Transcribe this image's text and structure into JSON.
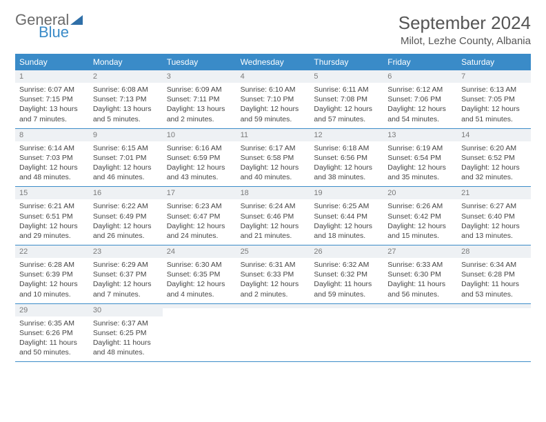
{
  "logo": {
    "word1": "General",
    "word2": "Blue"
  },
  "title": "September 2024",
  "location": "Milot, Lezhe County, Albania",
  "colors": {
    "header_bg": "#3a8bc8",
    "header_text": "#ffffff",
    "daynum_bg": "#eef1f4",
    "daynum_text": "#7a7a7a",
    "border": "#3a8bc8",
    "body_text": "#444444",
    "logo_gray": "#6a6a6a",
    "logo_blue": "#3a8bc8",
    "title_text": "#555555"
  },
  "dow": [
    "Sunday",
    "Monday",
    "Tuesday",
    "Wednesday",
    "Thursday",
    "Friday",
    "Saturday"
  ],
  "weeks": [
    [
      {
        "n": "1",
        "sr": "Sunrise: 6:07 AM",
        "ss": "Sunset: 7:15 PM",
        "d1": "Daylight: 13 hours",
        "d2": "and 7 minutes."
      },
      {
        "n": "2",
        "sr": "Sunrise: 6:08 AM",
        "ss": "Sunset: 7:13 PM",
        "d1": "Daylight: 13 hours",
        "d2": "and 5 minutes."
      },
      {
        "n": "3",
        "sr": "Sunrise: 6:09 AM",
        "ss": "Sunset: 7:11 PM",
        "d1": "Daylight: 13 hours",
        "d2": "and 2 minutes."
      },
      {
        "n": "4",
        "sr": "Sunrise: 6:10 AM",
        "ss": "Sunset: 7:10 PM",
        "d1": "Daylight: 12 hours",
        "d2": "and 59 minutes."
      },
      {
        "n": "5",
        "sr": "Sunrise: 6:11 AM",
        "ss": "Sunset: 7:08 PM",
        "d1": "Daylight: 12 hours",
        "d2": "and 57 minutes."
      },
      {
        "n": "6",
        "sr": "Sunrise: 6:12 AM",
        "ss": "Sunset: 7:06 PM",
        "d1": "Daylight: 12 hours",
        "d2": "and 54 minutes."
      },
      {
        "n": "7",
        "sr": "Sunrise: 6:13 AM",
        "ss": "Sunset: 7:05 PM",
        "d1": "Daylight: 12 hours",
        "d2": "and 51 minutes."
      }
    ],
    [
      {
        "n": "8",
        "sr": "Sunrise: 6:14 AM",
        "ss": "Sunset: 7:03 PM",
        "d1": "Daylight: 12 hours",
        "d2": "and 48 minutes."
      },
      {
        "n": "9",
        "sr": "Sunrise: 6:15 AM",
        "ss": "Sunset: 7:01 PM",
        "d1": "Daylight: 12 hours",
        "d2": "and 46 minutes."
      },
      {
        "n": "10",
        "sr": "Sunrise: 6:16 AM",
        "ss": "Sunset: 6:59 PM",
        "d1": "Daylight: 12 hours",
        "d2": "and 43 minutes."
      },
      {
        "n": "11",
        "sr": "Sunrise: 6:17 AM",
        "ss": "Sunset: 6:58 PM",
        "d1": "Daylight: 12 hours",
        "d2": "and 40 minutes."
      },
      {
        "n": "12",
        "sr": "Sunrise: 6:18 AM",
        "ss": "Sunset: 6:56 PM",
        "d1": "Daylight: 12 hours",
        "d2": "and 38 minutes."
      },
      {
        "n": "13",
        "sr": "Sunrise: 6:19 AM",
        "ss": "Sunset: 6:54 PM",
        "d1": "Daylight: 12 hours",
        "d2": "and 35 minutes."
      },
      {
        "n": "14",
        "sr": "Sunrise: 6:20 AM",
        "ss": "Sunset: 6:52 PM",
        "d1": "Daylight: 12 hours",
        "d2": "and 32 minutes."
      }
    ],
    [
      {
        "n": "15",
        "sr": "Sunrise: 6:21 AM",
        "ss": "Sunset: 6:51 PM",
        "d1": "Daylight: 12 hours",
        "d2": "and 29 minutes."
      },
      {
        "n": "16",
        "sr": "Sunrise: 6:22 AM",
        "ss": "Sunset: 6:49 PM",
        "d1": "Daylight: 12 hours",
        "d2": "and 26 minutes."
      },
      {
        "n": "17",
        "sr": "Sunrise: 6:23 AM",
        "ss": "Sunset: 6:47 PM",
        "d1": "Daylight: 12 hours",
        "d2": "and 24 minutes."
      },
      {
        "n": "18",
        "sr": "Sunrise: 6:24 AM",
        "ss": "Sunset: 6:46 PM",
        "d1": "Daylight: 12 hours",
        "d2": "and 21 minutes."
      },
      {
        "n": "19",
        "sr": "Sunrise: 6:25 AM",
        "ss": "Sunset: 6:44 PM",
        "d1": "Daylight: 12 hours",
        "d2": "and 18 minutes."
      },
      {
        "n": "20",
        "sr": "Sunrise: 6:26 AM",
        "ss": "Sunset: 6:42 PM",
        "d1": "Daylight: 12 hours",
        "d2": "and 15 minutes."
      },
      {
        "n": "21",
        "sr": "Sunrise: 6:27 AM",
        "ss": "Sunset: 6:40 PM",
        "d1": "Daylight: 12 hours",
        "d2": "and 13 minutes."
      }
    ],
    [
      {
        "n": "22",
        "sr": "Sunrise: 6:28 AM",
        "ss": "Sunset: 6:39 PM",
        "d1": "Daylight: 12 hours",
        "d2": "and 10 minutes."
      },
      {
        "n": "23",
        "sr": "Sunrise: 6:29 AM",
        "ss": "Sunset: 6:37 PM",
        "d1": "Daylight: 12 hours",
        "d2": "and 7 minutes."
      },
      {
        "n": "24",
        "sr": "Sunrise: 6:30 AM",
        "ss": "Sunset: 6:35 PM",
        "d1": "Daylight: 12 hours",
        "d2": "and 4 minutes."
      },
      {
        "n": "25",
        "sr": "Sunrise: 6:31 AM",
        "ss": "Sunset: 6:33 PM",
        "d1": "Daylight: 12 hours",
        "d2": "and 2 minutes."
      },
      {
        "n": "26",
        "sr": "Sunrise: 6:32 AM",
        "ss": "Sunset: 6:32 PM",
        "d1": "Daylight: 11 hours",
        "d2": "and 59 minutes."
      },
      {
        "n": "27",
        "sr": "Sunrise: 6:33 AM",
        "ss": "Sunset: 6:30 PM",
        "d1": "Daylight: 11 hours",
        "d2": "and 56 minutes."
      },
      {
        "n": "28",
        "sr": "Sunrise: 6:34 AM",
        "ss": "Sunset: 6:28 PM",
        "d1": "Daylight: 11 hours",
        "d2": "and 53 minutes."
      }
    ],
    [
      {
        "n": "29",
        "sr": "Sunrise: 6:35 AM",
        "ss": "Sunset: 6:26 PM",
        "d1": "Daylight: 11 hours",
        "d2": "and 50 minutes."
      },
      {
        "n": "30",
        "sr": "Sunrise: 6:37 AM",
        "ss": "Sunset: 6:25 PM",
        "d1": "Daylight: 11 hours",
        "d2": "and 48 minutes."
      },
      {
        "empty": true
      },
      {
        "empty": true
      },
      {
        "empty": true
      },
      {
        "empty": true
      },
      {
        "empty": true
      }
    ]
  ]
}
